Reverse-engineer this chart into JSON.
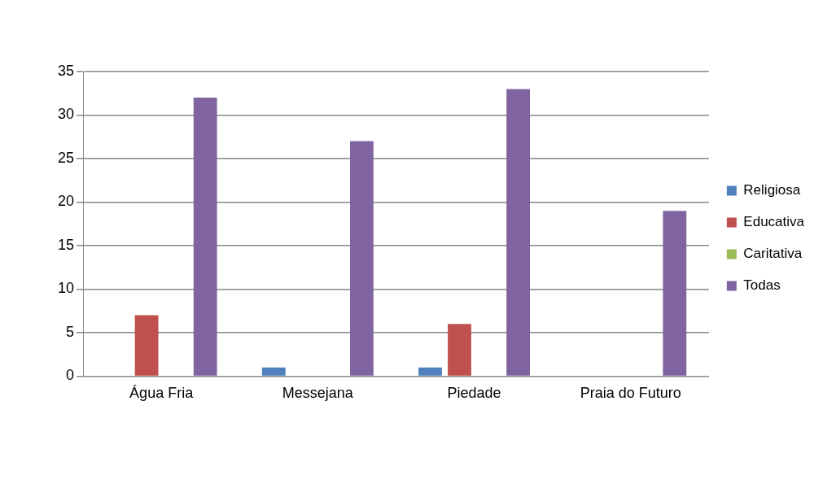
{
  "chart_data": {
    "type": "bar",
    "categories": [
      "Água Fria",
      "Messejana",
      "Piedade",
      "Praia do Futuro"
    ],
    "series": [
      {
        "name": "Religiosa",
        "color": "#4f81bd",
        "values": [
          0,
          1,
          1,
          0
        ]
      },
      {
        "name": "Educativa",
        "color": "#c0504d",
        "values": [
          7,
          0,
          6,
          0
        ]
      },
      {
        "name": "Caritativa",
        "color": "#9bbb59",
        "values": [
          0,
          0,
          0,
          0
        ]
      },
      {
        "name": "Todas",
        "color": "#8064a2",
        "values": [
          32,
          27,
          33,
          19
        ]
      }
    ],
    "ylim": [
      0,
      35
    ],
    "yticks": [
      0,
      5,
      10,
      15,
      20,
      25,
      30,
      35
    ],
    "grid": "y",
    "legend": "right"
  }
}
